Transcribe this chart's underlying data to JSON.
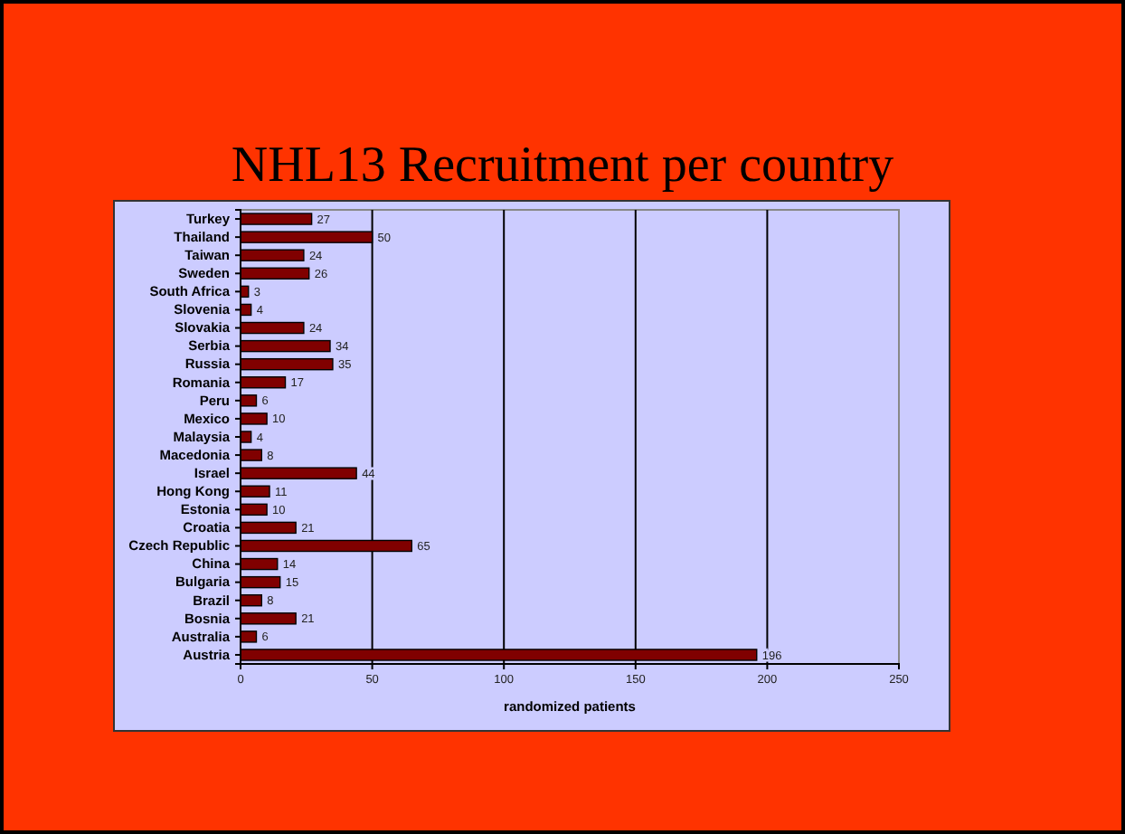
{
  "chart_data": {
    "type": "bar",
    "orientation": "horizontal",
    "title": "NHL13 Recruitment per country",
    "xlabel": "randomized patients",
    "categories": [
      "Turkey",
      "Thailand",
      "Taiwan",
      "Sweden",
      "South Africa",
      "Slovenia",
      "Slovakia",
      "Serbia",
      "Russia",
      "Romania",
      "Peru",
      "Mexico",
      "Malaysia",
      "Macedonia",
      "Israel",
      "Hong Kong",
      "Estonia",
      "Croatia",
      "Czech Republic",
      "China",
      "Bulgaria",
      "Brazil",
      "Bosnia",
      "Australia",
      "Austria"
    ],
    "values": [
      27,
      50,
      24,
      26,
      3,
      4,
      24,
      34,
      35,
      17,
      6,
      10,
      4,
      8,
      44,
      11,
      10,
      21,
      65,
      14,
      15,
      8,
      21,
      6,
      196
    ],
    "color": "#800000",
    "xlim": [
      0,
      250
    ],
    "xticks": [
      0,
      50,
      100,
      150,
      200,
      250
    ],
    "grid": "x",
    "data_labels": true
  }
}
